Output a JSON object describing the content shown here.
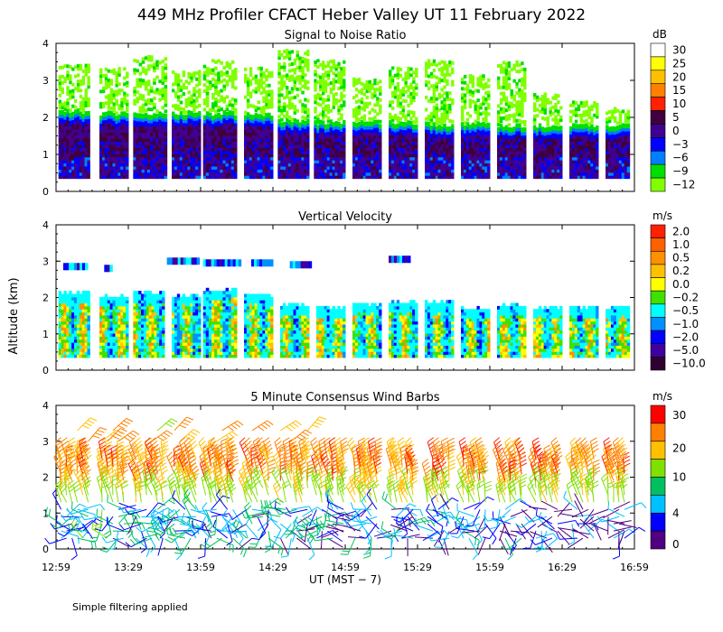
{
  "title": "449 MHz Profiler CFACT Heber Valley UT 11 February 2022",
  "ylabel": "Altitude (km)",
  "xlabel": "UT  (MST − 7)",
  "footnote": "Simple filtering applied",
  "x_ticks": [
    "12:59",
    "13:29",
    "13:59",
    "14:29",
    "14:59",
    "15:29",
    "15:59",
    "16:29",
    "16:59"
  ],
  "y_ticks": [
    "0",
    "1",
    "2",
    "3",
    "4"
  ],
  "chart_data": [
    {
      "type": "heatmap",
      "title": "Signal to Noise Ratio",
      "colorbar": {
        "unit": "dB",
        "labels": [
          "30",
          "25",
          "20",
          "15",
          "10",
          "5",
          "0",
          "−3",
          "−6",
          "−9",
          "−12"
        ],
        "colors": [
          "#ffffff",
          "#ffff00",
          "#ffc000",
          "#ff8000",
          "#ff2000",
          "#400040",
          "#400090",
          "#0000ff",
          "#0080ff",
          "#00e000",
          "#80ff00"
        ]
      },
      "xlim": [
        "12:59",
        "16:59"
      ],
      "ylim": [
        0,
        4
      ],
      "blocks": [
        {
          "start": "13:00",
          "end": "13:13",
          "top": 1.95,
          "cloud_top": 3.4
        },
        {
          "start": "13:17",
          "end": "13:29",
          "top": 1.9,
          "cloud_top": 3.3
        },
        {
          "start": "13:31",
          "end": "13:45",
          "top": 1.9,
          "cloud_top": 3.6
        },
        {
          "start": "13:47",
          "end": "13:59",
          "top": 1.9,
          "cloud_top": 3.2
        },
        {
          "start": "14:00",
          "end": "14:14",
          "top": 1.9,
          "cloud_top": 3.5
        },
        {
          "start": "14:17",
          "end": "14:29",
          "top": 1.85,
          "cloud_top": 3.3
        },
        {
          "start": "14:31",
          "end": "14:44",
          "top": 1.7,
          "cloud_top": 3.8
        },
        {
          "start": "14:46",
          "end": "14:59",
          "top": 1.65,
          "cloud_top": 3.5
        },
        {
          "start": "15:02",
          "end": "15:14",
          "top": 1.65,
          "cloud_top": 3.0
        },
        {
          "start": "15:17",
          "end": "15:29",
          "top": 1.65,
          "cloud_top": 3.3
        },
        {
          "start": "15:32",
          "end": "15:44",
          "top": 1.6,
          "cloud_top": 3.5
        },
        {
          "start": "15:47",
          "end": "15:59",
          "top": 1.6,
          "cloud_top": 3.1
        },
        {
          "start": "16:02",
          "end": "16:14",
          "top": 1.55,
          "cloud_top": 3.5
        },
        {
          "start": "16:17",
          "end": "16:29",
          "top": 1.55,
          "cloud_top": 2.6
        },
        {
          "start": "16:32",
          "end": "16:44",
          "top": 1.55,
          "cloud_top": 2.4
        },
        {
          "start": "16:47",
          "end": "16:57",
          "top": 1.55,
          "cloud_top": 2.2
        }
      ]
    },
    {
      "type": "heatmap",
      "title": "Vertical Velocity",
      "colorbar": {
        "unit": "m/s",
        "labels": [
          "2.0",
          "1.0",
          "0.5",
          "0.2",
          "0.0",
          "−0.2",
          "−0.5",
          "−1.0",
          "−2.0",
          "−5.0",
          "−10.0"
        ],
        "colors": [
          "#ff2000",
          "#ff6000",
          "#ff9000",
          "#ffc000",
          "#ffff00",
          "#40e000",
          "#00ffff",
          "#0090ff",
          "#0000ff",
          "#4000a0",
          "#300030"
        ]
      },
      "xlim": [
        "12:59",
        "16:59"
      ],
      "ylim": [
        0,
        4
      ],
      "blocks": [
        {
          "start": "13:00",
          "end": "13:13",
          "top": 2.1
        },
        {
          "start": "13:17",
          "end": "13:29",
          "top": 2.0
        },
        {
          "start": "13:31",
          "end": "13:44",
          "top": 2.1
        },
        {
          "start": "13:47",
          "end": "13:59",
          "top": 2.05
        },
        {
          "start": "14:00",
          "end": "14:14",
          "top": 2.2
        },
        {
          "start": "14:17",
          "end": "14:29",
          "top": 2.05
        },
        {
          "start": "14:32",
          "end": "14:44",
          "top": 1.75
        },
        {
          "start": "14:47",
          "end": "14:59",
          "top": 1.7
        },
        {
          "start": "15:02",
          "end": "15:14",
          "top": 1.8
        },
        {
          "start": "15:17",
          "end": "15:29",
          "top": 1.85
        },
        {
          "start": "15:32",
          "end": "15:44",
          "top": 1.85
        },
        {
          "start": "15:47",
          "end": "15:59",
          "top": 1.65
        },
        {
          "start": "16:02",
          "end": "16:14",
          "top": 1.75
        },
        {
          "start": "16:17",
          "end": "16:29",
          "top": 1.7
        },
        {
          "start": "16:32",
          "end": "16:44",
          "top": 1.7
        },
        {
          "start": "16:47",
          "end": "16:57",
          "top": 1.7
        }
      ]
    },
    {
      "type": "scatter",
      "title": "5 Minute Consensus Wind Barbs",
      "colorbar": {
        "unit": "m/s",
        "labels": [
          "30",
          "20",
          "10",
          "4",
          "0"
        ],
        "colors": [
          "#ff0000",
          "#ff8000",
          "#ffc000",
          "#80e000",
          "#00c060",
          "#00c0ff",
          "#0000ff",
          "#500080"
        ]
      },
      "xlim": [
        "12:59",
        "16:59"
      ],
      "ylim": [
        0,
        4
      ],
      "levels_km": [
        0.3,
        0.5,
        0.7,
        0.9,
        1.1,
        1.3,
        1.5,
        1.7,
        1.9,
        2.1,
        2.3,
        2.5
      ],
      "upper_levels_km": [
        3.0,
        3.3
      ],
      "wind_speed_ms": {
        "below_1.2km": [
          2,
          10
        ],
        "1.2_to_1.8km": [
          10,
          16
        ],
        "1.8_to_2.6km": [
          16,
          28
        ],
        "above_2.6km": [
          12,
          24
        ]
      }
    }
  ]
}
